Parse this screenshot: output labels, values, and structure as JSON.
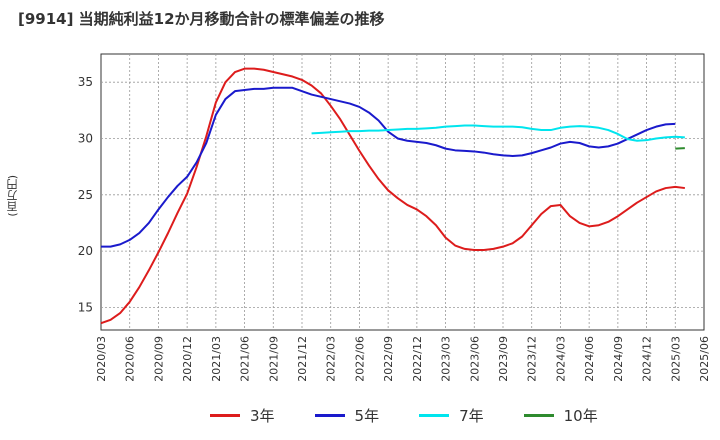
{
  "chart_data": {
    "type": "line",
    "title": "[9914]  当期純利益12か月移動合計の標準偏差の推移",
    "ylabel": "(百万円)",
    "xlabel": "",
    "ylim": [
      13,
      37.5
    ],
    "yticks": [
      15,
      20,
      25,
      30,
      35
    ],
    "xlim": [
      "2020-03",
      "2025-06"
    ],
    "x_tick_labels": [
      "2020/03",
      "2020/06",
      "2020/09",
      "2020/12",
      "2021/03",
      "2021/06",
      "2021/09",
      "2021/12",
      "2022/03",
      "2022/06",
      "2022/09",
      "2022/12",
      "2023/03",
      "2023/06",
      "2023/09",
      "2023/12",
      "2024/03",
      "2024/06",
      "2024/09",
      "2024/12",
      "2025/03",
      "2025/06"
    ],
    "grid": true,
    "legend_position": "bottom",
    "series": [
      {
        "name": "3年",
        "color": "#dd1c1c",
        "points": [
          [
            "2020-03",
            13.6
          ],
          [
            "2020-04",
            13.9
          ],
          [
            "2020-05",
            14.5
          ],
          [
            "2020-06",
            15.5
          ],
          [
            "2020-07",
            16.8
          ],
          [
            "2020-08",
            18.3
          ],
          [
            "2020-09",
            19.9
          ],
          [
            "2020-10",
            21.6
          ],
          [
            "2020-11",
            23.4
          ],
          [
            "2020-12",
            25.1
          ],
          [
            "2021-01",
            27.5
          ],
          [
            "2021-02",
            30.2
          ],
          [
            "2021-03",
            33.2
          ],
          [
            "2021-04",
            35.0
          ],
          [
            "2021-05",
            35.9
          ],
          [
            "2021-06",
            36.2
          ],
          [
            "2021-07",
            36.2
          ],
          [
            "2021-08",
            36.1
          ],
          [
            "2021-09",
            35.9
          ],
          [
            "2021-10",
            35.7
          ],
          [
            "2021-11",
            35.5
          ],
          [
            "2021-12",
            35.2
          ],
          [
            "2022-01",
            34.7
          ],
          [
            "2022-02",
            34.0
          ],
          [
            "2022-03",
            32.9
          ],
          [
            "2022-04",
            31.7
          ],
          [
            "2022-05",
            30.3
          ],
          [
            "2022-06",
            28.9
          ],
          [
            "2022-07",
            27.6
          ],
          [
            "2022-08",
            26.4
          ],
          [
            "2022-09",
            25.4
          ],
          [
            "2022-10",
            24.7
          ],
          [
            "2022-11",
            24.1
          ],
          [
            "2022-12",
            23.7
          ],
          [
            "2023-01",
            23.1
          ],
          [
            "2023-02",
            22.3
          ],
          [
            "2023-03",
            21.2
          ],
          [
            "2023-04",
            20.5
          ],
          [
            "2023-05",
            20.2
          ],
          [
            "2023-06",
            20.1
          ],
          [
            "2023-07",
            20.1
          ],
          [
            "2023-08",
            20.2
          ],
          [
            "2023-09",
            20.4
          ],
          [
            "2023-10",
            20.7
          ],
          [
            "2023-11",
            21.3
          ],
          [
            "2023-12",
            22.3
          ],
          [
            "2024-01",
            23.3
          ],
          [
            "2024-02",
            24.0
          ],
          [
            "2024-03",
            24.1
          ],
          [
            "2024-04",
            23.1
          ],
          [
            "2024-05",
            22.5
          ],
          [
            "2024-06",
            22.2
          ],
          [
            "2024-07",
            22.3
          ],
          [
            "2024-08",
            22.6
          ],
          [
            "2024-09",
            23.1
          ],
          [
            "2024-10",
            23.7
          ],
          [
            "2024-11",
            24.3
          ],
          [
            "2024-12",
            24.8
          ],
          [
            "2025-01",
            25.3
          ],
          [
            "2025-02",
            25.6
          ],
          [
            "2025-03",
            25.7
          ],
          [
            "2025-04",
            25.6
          ]
        ]
      },
      {
        "name": "5年",
        "color": "#1a1acc",
        "points": [
          [
            "2020-03",
            20.4
          ],
          [
            "2020-04",
            20.4
          ],
          [
            "2020-05",
            20.6
          ],
          [
            "2020-06",
            21.0
          ],
          [
            "2020-07",
            21.6
          ],
          [
            "2020-08",
            22.5
          ],
          [
            "2020-09",
            23.7
          ],
          [
            "2020-10",
            24.8
          ],
          [
            "2020-11",
            25.8
          ],
          [
            "2020-12",
            26.6
          ],
          [
            "2021-01",
            27.9
          ],
          [
            "2021-02",
            29.6
          ],
          [
            "2021-03",
            32.1
          ],
          [
            "2021-04",
            33.5
          ],
          [
            "2021-05",
            34.2
          ],
          [
            "2021-06",
            34.3
          ],
          [
            "2021-07",
            34.4
          ],
          [
            "2021-08",
            34.4
          ],
          [
            "2021-09",
            34.5
          ],
          [
            "2021-10",
            34.5
          ],
          [
            "2021-11",
            34.5
          ],
          [
            "2021-12",
            34.2
          ],
          [
            "2022-01",
            33.9
          ],
          [
            "2022-02",
            33.7
          ],
          [
            "2022-03",
            33.5
          ],
          [
            "2022-04",
            33.3
          ],
          [
            "2022-05",
            33.1
          ],
          [
            "2022-06",
            32.8
          ],
          [
            "2022-07",
            32.3
          ],
          [
            "2022-08",
            31.6
          ],
          [
            "2022-09",
            30.6
          ],
          [
            "2022-10",
            30.0
          ],
          [
            "2022-11",
            29.8
          ],
          [
            "2022-12",
            29.7
          ],
          [
            "2023-01",
            29.6
          ],
          [
            "2023-02",
            29.4
          ],
          [
            "2023-03",
            29.1
          ],
          [
            "2023-04",
            28.95
          ],
          [
            "2023-05",
            28.9
          ],
          [
            "2023-06",
            28.85
          ],
          [
            "2023-07",
            28.75
          ],
          [
            "2023-08",
            28.6
          ],
          [
            "2023-09",
            28.5
          ],
          [
            "2023-10",
            28.45
          ],
          [
            "2023-11",
            28.5
          ],
          [
            "2023-12",
            28.7
          ],
          [
            "2024-01",
            28.95
          ],
          [
            "2024-02",
            29.2
          ],
          [
            "2024-03",
            29.55
          ],
          [
            "2024-04",
            29.7
          ],
          [
            "2024-05",
            29.6
          ],
          [
            "2024-06",
            29.3
          ],
          [
            "2024-07",
            29.2
          ],
          [
            "2024-08",
            29.3
          ],
          [
            "2024-09",
            29.55
          ],
          [
            "2024-10",
            29.95
          ],
          [
            "2024-11",
            30.35
          ],
          [
            "2024-12",
            30.75
          ],
          [
            "2025-01",
            31.05
          ],
          [
            "2025-02",
            31.25
          ],
          [
            "2025-03",
            31.3
          ]
        ]
      },
      {
        "name": "7年",
        "color": "#00e5ee",
        "points": [
          [
            "2022-01",
            30.45
          ],
          [
            "2022-02",
            30.5
          ],
          [
            "2022-03",
            30.55
          ],
          [
            "2022-04",
            30.6
          ],
          [
            "2022-05",
            30.65
          ],
          [
            "2022-06",
            30.65
          ],
          [
            "2022-07",
            30.7
          ],
          [
            "2022-08",
            30.7
          ],
          [
            "2022-09",
            30.75
          ],
          [
            "2022-10",
            30.8
          ],
          [
            "2022-11",
            30.85
          ],
          [
            "2022-12",
            30.85
          ],
          [
            "2023-01",
            30.9
          ],
          [
            "2023-02",
            30.95
          ],
          [
            "2023-03",
            31.05
          ],
          [
            "2023-04",
            31.1
          ],
          [
            "2023-05",
            31.15
          ],
          [
            "2023-06",
            31.15
          ],
          [
            "2023-07",
            31.1
          ],
          [
            "2023-08",
            31.05
          ],
          [
            "2023-09",
            31.05
          ],
          [
            "2023-10",
            31.05
          ],
          [
            "2023-11",
            31.0
          ],
          [
            "2023-12",
            30.85
          ],
          [
            "2024-01",
            30.75
          ],
          [
            "2024-02",
            30.75
          ],
          [
            "2024-03",
            30.95
          ],
          [
            "2024-04",
            31.05
          ],
          [
            "2024-05",
            31.1
          ],
          [
            "2024-06",
            31.05
          ],
          [
            "2024-07",
            30.95
          ],
          [
            "2024-08",
            30.75
          ],
          [
            "2024-09",
            30.4
          ],
          [
            "2024-10",
            29.95
          ],
          [
            "2024-11",
            29.8
          ],
          [
            "2024-12",
            29.85
          ],
          [
            "2025-01",
            30.0
          ],
          [
            "2025-02",
            30.1
          ],
          [
            "2025-03",
            30.15
          ],
          [
            "2025-04",
            30.1
          ]
        ]
      },
      {
        "name": "10年",
        "color": "#2e8b2e",
        "points": [
          [
            "2025-03",
            29.1
          ],
          [
            "2025-04",
            29.15
          ]
        ]
      }
    ]
  }
}
